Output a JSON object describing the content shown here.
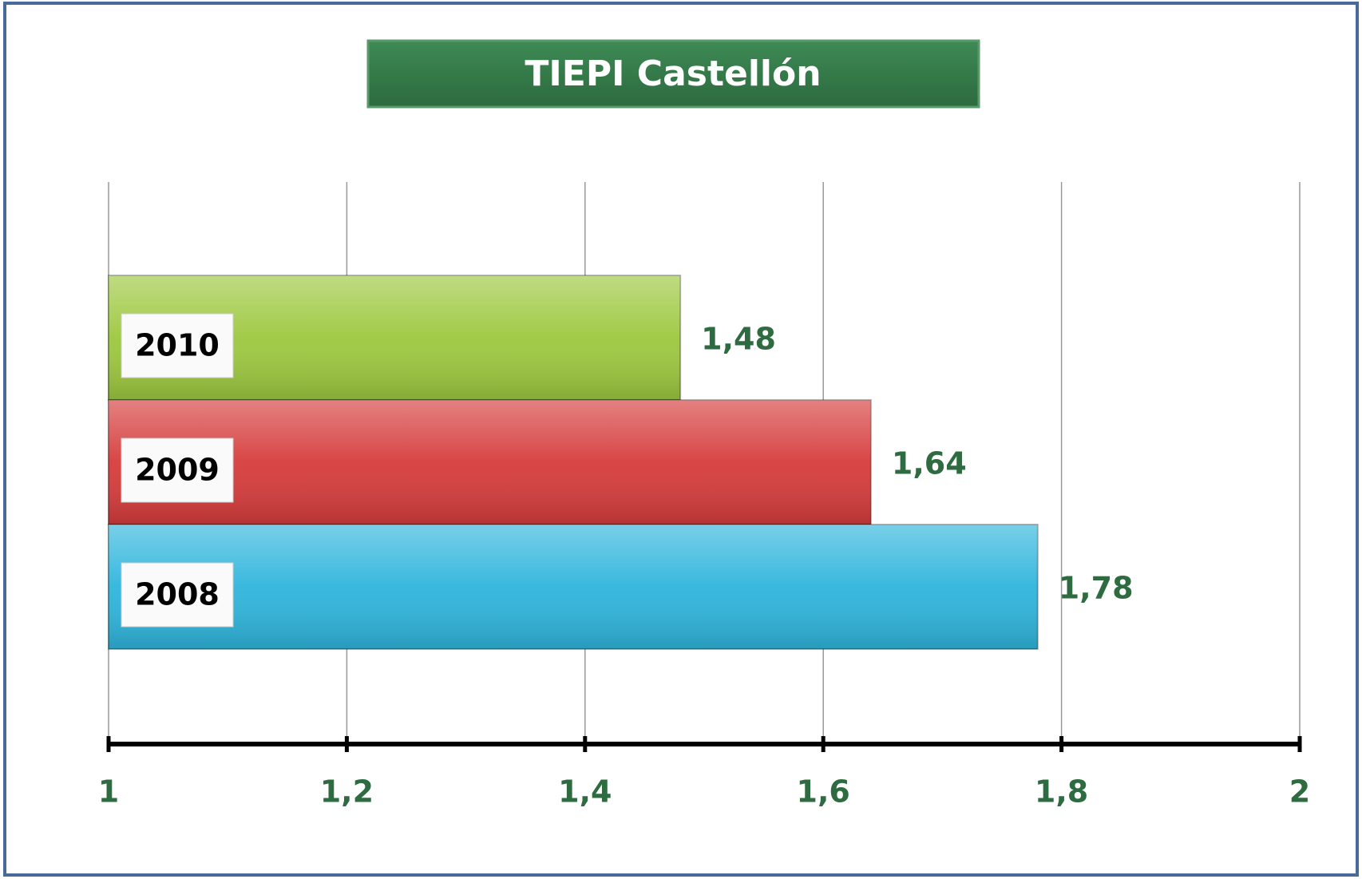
{
  "chart_data": {
    "type": "barh",
    "title": "TIEPI  Castellón",
    "categories": [
      "2010",
      "2009",
      "2008"
    ],
    "values": [
      1.48,
      1.64,
      1.78
    ],
    "value_labels": [
      "1,48",
      "1,64",
      "1,78"
    ],
    "colors": [
      "#9dc83f",
      "#d63c3c",
      "#2fb5dc"
    ],
    "xlim": [
      1,
      2
    ],
    "xticks": [
      1,
      {
        "value": 1.2,
        "label": "1,2"
      },
      {
        "value": 1.4,
        "label": "1,4"
      },
      {
        "value": 1.6,
        "label": "1,6"
      },
      {
        "value": 1.8,
        "label": "1,8"
      },
      2
    ],
    "grid": true
  }
}
